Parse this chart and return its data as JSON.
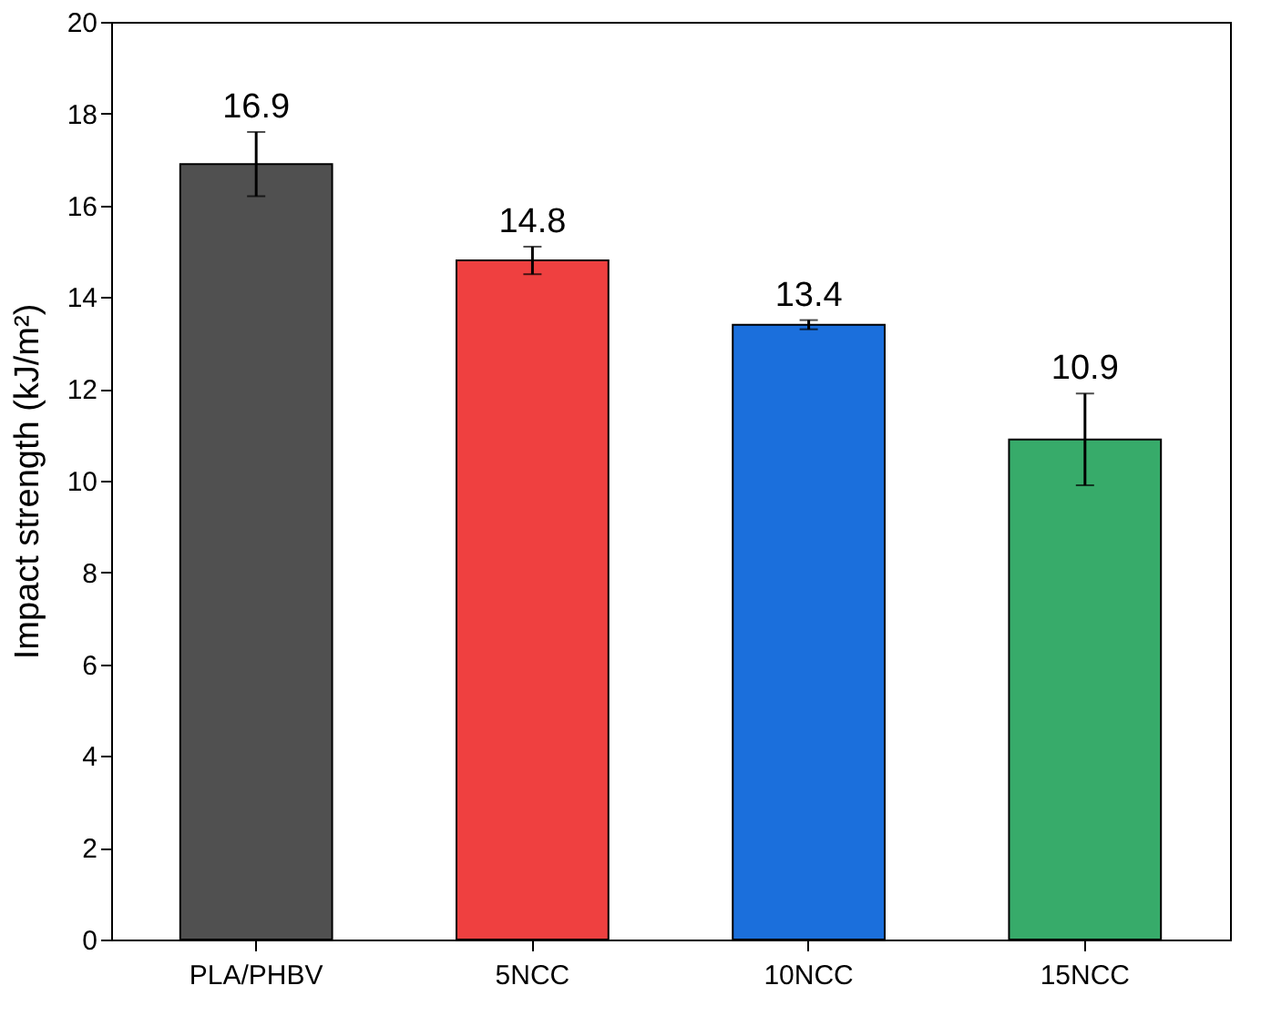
{
  "chart_data": {
    "type": "bar",
    "ylabel": "Impact strength (kJ/m²)",
    "categories": [
      "PLA/PHBV",
      "5NCC",
      "10NCC",
      "15NCC"
    ],
    "values": [
      16.9,
      14.8,
      13.4,
      10.9
    ],
    "errors": [
      0.7,
      0.3,
      0.1,
      1.0
    ],
    "colors": [
      "#505050",
      "#ef4040",
      "#1b6fdc",
      "#37ab6a"
    ],
    "ylim": [
      0,
      20
    ],
    "yticks": [
      0,
      2,
      4,
      6,
      8,
      10,
      12,
      14,
      16,
      18,
      20
    ],
    "grid": false,
    "data_labels": true
  }
}
